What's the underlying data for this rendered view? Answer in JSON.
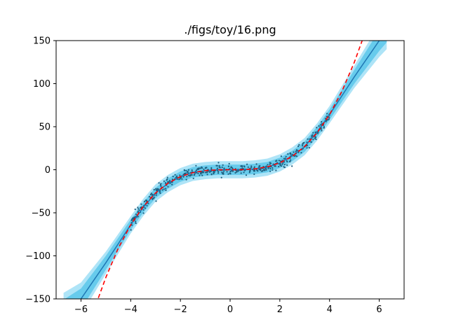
{
  "chart_data": {
    "type": "line",
    "title": "./figs/toy/16.png",
    "xlabel": "",
    "ylabel": "",
    "xlim": [
      -7,
      7
    ],
    "ylim": [
      -150,
      150
    ],
    "x_ticks": [
      -6,
      -4,
      -2,
      0,
      2,
      4,
      6
    ],
    "x_tick_labels": [
      "−6",
      "−4",
      "−2",
      "0",
      "2",
      "4",
      "6"
    ],
    "y_ticks": [
      -150,
      -100,
      -50,
      0,
      50,
      100,
      150
    ],
    "y_tick_labels": [
      "−150",
      "−100",
      "−50",
      "0",
      "50",
      "100",
      "150"
    ],
    "grid": false,
    "legend": "none",
    "colors": {
      "mean_line": "#1f77b4",
      "band_inner": "#4fc3e8",
      "band_outer": "#aee4f7",
      "observations": "#1f5f7f",
      "true_function": "#ff0000"
    },
    "series": [
      {
        "style": "dashed-red",
        "function": "y = x^3",
        "x": [
          -5.3,
          -5.0,
          -4.5,
          -4.0,
          -3.5,
          -3.0,
          -2.5,
          -2.0,
          -1.5,
          -1.0,
          -0.5,
          0.0,
          0.5,
          1.0,
          1.5,
          2.0,
          2.5,
          3.0,
          3.5,
          4.0,
          4.5,
          5.0,
          5.31
        ],
        "y": [
          -148.9,
          -125,
          -91.1,
          -64,
          -42.9,
          -27,
          -15.6,
          -8,
          -3.4,
          -1,
          -0.1,
          0,
          0.1,
          1,
          3.4,
          8,
          15.6,
          27,
          42.9,
          64,
          91.1,
          125,
          149.7
        ]
      },
      {
        "style": "solid-blue-mean",
        "x": [
          -6.7,
          -6.0,
          -5.0,
          -4.0,
          -3.5,
          -3.0,
          -2.5,
          -2.0,
          -1.5,
          -1.0,
          -0.5,
          0.0,
          0.5,
          1.0,
          1.5,
          2.0,
          2.5,
          3.0,
          3.5,
          4.0,
          5.0,
          6.0,
          6.3
        ],
        "y": [
          -165,
          -150,
          -108,
          -64,
          -44,
          -27,
          -16,
          -8,
          -3,
          -1,
          0,
          0,
          0,
          1,
          3,
          8,
          16,
          27,
          44,
          64,
          108,
          150,
          162
        ],
        "band_inner_halfwidth": [
          14,
          12,
          8,
          6,
          6,
          6,
          6,
          6,
          6,
          6,
          6,
          6,
          6,
          6,
          6,
          6,
          6,
          6,
          6,
          6,
          8,
          12,
          14
        ],
        "band_outer_halfwidth": [
          22,
          19,
          13,
          10,
          10,
          10,
          10,
          10,
          10,
          10,
          10,
          10,
          10,
          10,
          10,
          10,
          10,
          10,
          10,
          10,
          13,
          19,
          22
        ]
      },
      {
        "style": "scatter-observations",
        "function": "y = x^3 + noise",
        "x_range": [
          -4,
          4
        ],
        "count": 500,
        "noise_sd": 3
      }
    ]
  }
}
